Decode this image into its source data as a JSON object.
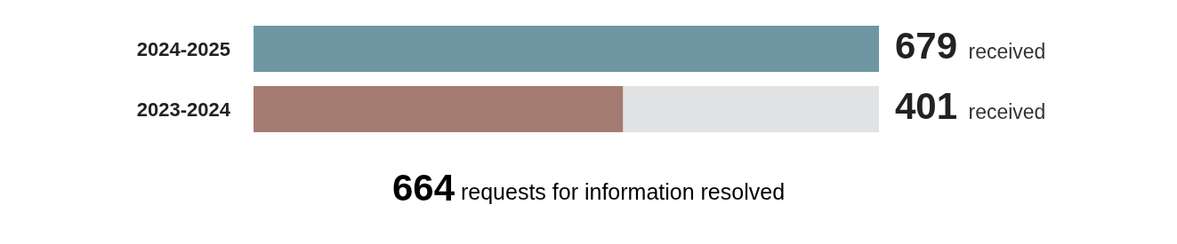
{
  "chart_data": {
    "type": "bar",
    "orientation": "horizontal",
    "categories": [
      "2024-2025",
      "2023-2024"
    ],
    "values": [
      679,
      401
    ],
    "colors": [
      "#6e97a3",
      "#a47b70"
    ],
    "value_labels": [
      "679 received",
      "401 received"
    ],
    "annotations": [
      "664 requests for information resolved"
    ]
  }
}
